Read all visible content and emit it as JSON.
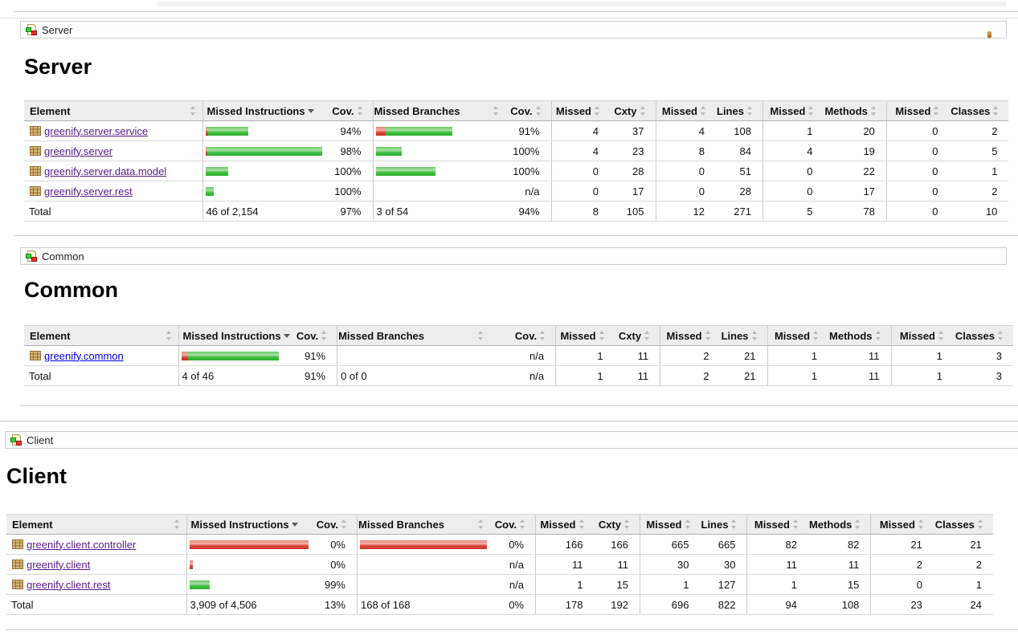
{
  "sections": [
    {
      "id": "server",
      "breadcrumb": {
        "label": "Server",
        "icon": "report-group-icon",
        "trailing_icon": "sessions-icon-fragment"
      },
      "title": "Server",
      "columns": [
        "Element",
        "Missed Instructions",
        "Cov.",
        "Missed Branches",
        "Cov.",
        "Missed",
        "Cxty",
        "Missed",
        "Lines",
        "Missed",
        "Methods",
        "Missed",
        "Classes"
      ],
      "sorted_column": "Missed Instructions",
      "sort_direction": "desc",
      "rows": [
        {
          "name": "greenify.server.service",
          "visited": true,
          "instr_bar": {
            "red": 3,
            "green": 50
          },
          "instr_cov": "94%",
          "branch_bar": {
            "red": 12,
            "green": 83
          },
          "branch_cov": "91%",
          "cells": [
            "4",
            "37",
            "4",
            "108",
            "1",
            "20",
            "0",
            "2"
          ]
        },
        {
          "name": "greenify.server",
          "visited": true,
          "instr_bar": {
            "red": 2,
            "green": 143
          },
          "instr_cov": "98%",
          "branch_bar": {
            "red": 0,
            "green": 32
          },
          "branch_cov": "100%",
          "cells": [
            "4",
            "23",
            "8",
            "84",
            "4",
            "19",
            "0",
            "5"
          ]
        },
        {
          "name": "greenify.server.data.model",
          "visited": true,
          "instr_bar": {
            "red": 0,
            "green": 28
          },
          "instr_cov": "100%",
          "branch_bar": {
            "red": 0,
            "green": 74
          },
          "branch_cov": "100%",
          "cells": [
            "0",
            "28",
            "0",
            "51",
            "0",
            "22",
            "0",
            "1"
          ]
        },
        {
          "name": "greenify.server.rest",
          "visited": true,
          "instr_bar": {
            "red": 0,
            "green": 10
          },
          "instr_cov": "100%",
          "branch_bar": null,
          "branch_cov": "n/a",
          "cells": [
            "0",
            "17",
            "0",
            "28",
            "0",
            "17",
            "0",
            "2"
          ]
        }
      ],
      "total": {
        "label": "Total",
        "instr": "46 of 2,154",
        "instr_cov": "97%",
        "branch": "3 of 54",
        "branch_cov": "94%",
        "cells": [
          "8",
          "105",
          "12",
          "271",
          "5",
          "78",
          "0",
          "10"
        ]
      }
    },
    {
      "id": "common",
      "breadcrumb": {
        "label": "Common",
        "icon": "report-group-icon",
        "trailing_icon": null
      },
      "title": "Common",
      "columns": [
        "Element",
        "Missed Instructions",
        "Cov.",
        "Missed Branches",
        "Cov.",
        "Missed",
        "Cxty",
        "Missed",
        "Lines",
        "Missed",
        "Methods",
        "Missed",
        "Classes"
      ],
      "sorted_column": "Missed Instructions",
      "sort_direction": "desc",
      "rows": [
        {
          "name": "greenify.common",
          "visited": false,
          "instr_bar": {
            "red": 8,
            "green": 113
          },
          "instr_cov": "91%",
          "branch_bar": null,
          "branch_cov": "n/a",
          "cells": [
            "1",
            "11",
            "2",
            "21",
            "1",
            "11",
            "1",
            "3"
          ]
        }
      ],
      "total": {
        "label": "Total",
        "instr": "4 of 46",
        "instr_cov": "91%",
        "branch": "0 of 0",
        "branch_cov": "n/a",
        "cells": [
          "1",
          "11",
          "2",
          "21",
          "1",
          "11",
          "1",
          "3"
        ]
      }
    },
    {
      "id": "client",
      "breadcrumb": {
        "label": "Client",
        "icon": "report-group-icon",
        "trailing_icon": null
      },
      "title": "Client",
      "columns": [
        "Element",
        "Missed Instructions",
        "Cov.",
        "Missed Branches",
        "Cov.",
        "Missed",
        "Cxty",
        "Missed",
        "Lines",
        "Missed",
        "Methods",
        "Missed",
        "Classes"
      ],
      "sorted_column": "Missed Instructions",
      "sort_direction": "desc",
      "rows": [
        {
          "name": "greenify.client.controller",
          "visited": true,
          "instr_bar": {
            "red": 148,
            "green": 0
          },
          "instr_cov": "0%",
          "branch_bar": {
            "red": 158,
            "green": 0
          },
          "branch_cov": "0%",
          "cells": [
            "166",
            "166",
            "665",
            "665",
            "82",
            "82",
            "21",
            "21"
          ]
        },
        {
          "name": "greenify.client",
          "visited": true,
          "instr_bar": {
            "red": 4,
            "green": 0
          },
          "instr_cov": "0%",
          "branch_bar": null,
          "branch_cov": "n/a",
          "cells": [
            "11",
            "11",
            "30",
            "30",
            "11",
            "11",
            "2",
            "2"
          ]
        },
        {
          "name": "greenify.client.rest",
          "visited": true,
          "instr_bar": {
            "red": 0,
            "green": 25
          },
          "instr_cov": "99%",
          "branch_bar": null,
          "branch_cov": "n/a",
          "cells": [
            "1",
            "15",
            "1",
            "127",
            "1",
            "15",
            "0",
            "1"
          ]
        }
      ],
      "total": {
        "label": "Total",
        "instr": "3,909 of 4,506",
        "instr_cov": "13%",
        "branch": "168 of 168",
        "branch_cov": "0%",
        "cells": [
          "178",
          "192",
          "696",
          "822",
          "94",
          "108",
          "23",
          "24"
        ]
      }
    }
  ]
}
